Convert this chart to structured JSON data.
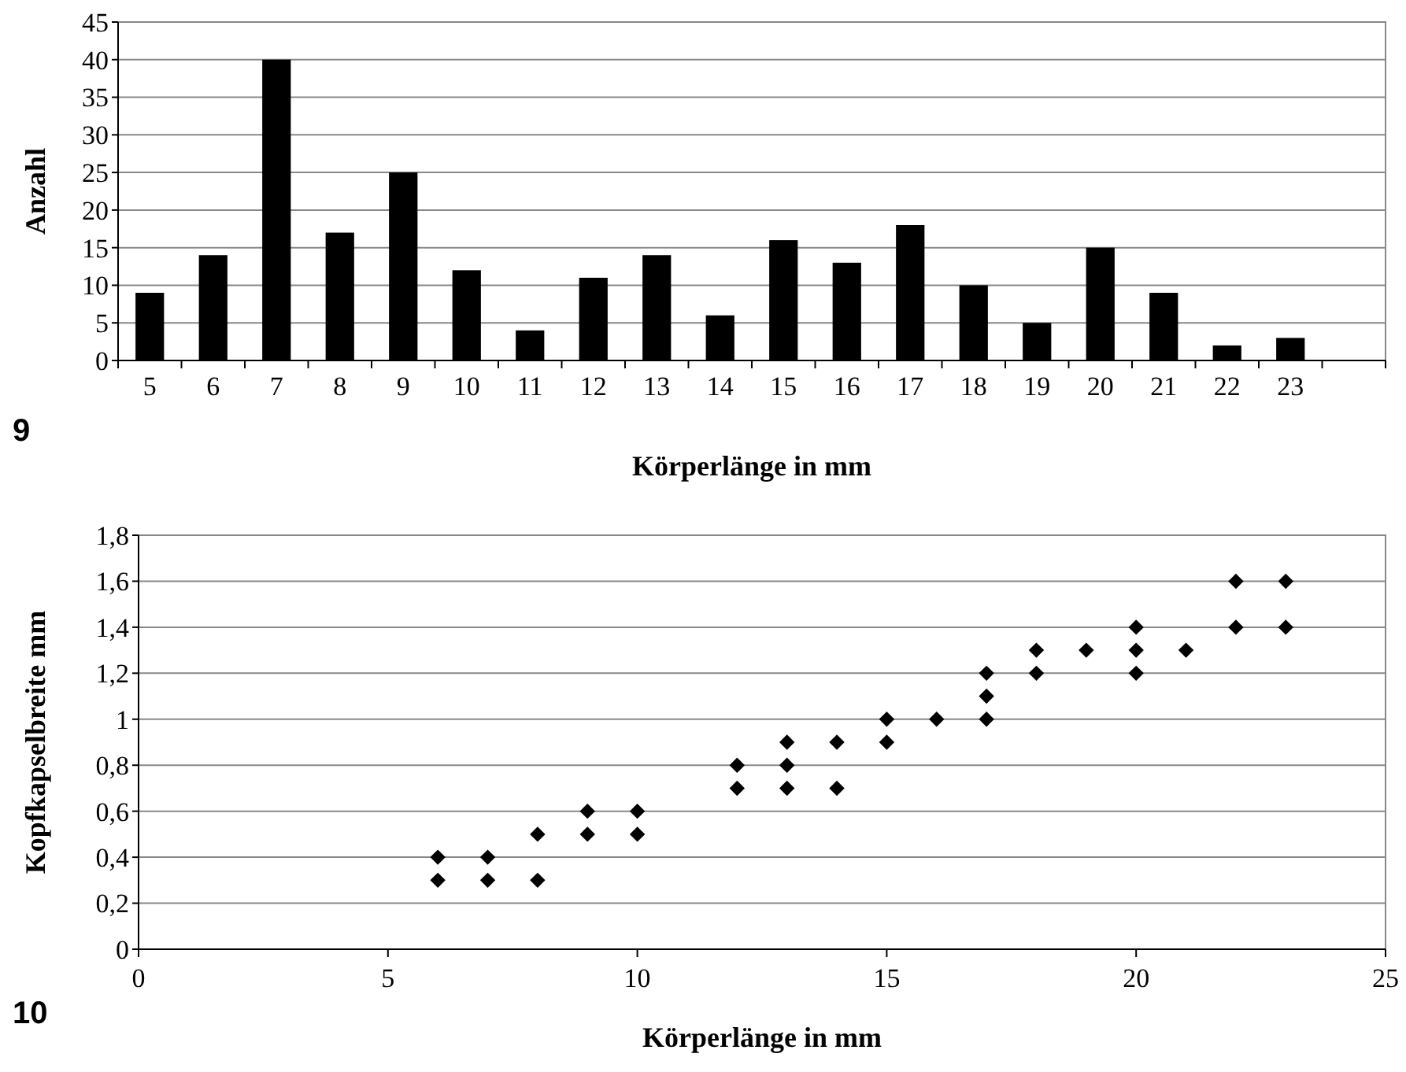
{
  "chart_data": [
    {
      "type": "bar",
      "xlabel": "Körperlänge in mm",
      "ylabel": "Anzahl",
      "annotations": [
        "9"
      ],
      "categories": [
        "5",
        "6",
        "7",
        "8",
        "9",
        "10",
        "11",
        "12",
        "13",
        "14",
        "15",
        "16",
        "17",
        "18",
        "19",
        "20",
        "21",
        "22",
        "23",
        null
      ],
      "values": [
        9,
        14,
        40,
        17,
        25,
        12,
        4,
        11,
        14,
        6,
        16,
        13,
        18,
        10,
        5,
        15,
        9,
        2,
        3,
        null
      ],
      "color": "#000000",
      "ylim": [
        0,
        45
      ],
      "yticks": [
        0,
        5,
        10,
        15,
        20,
        25,
        30,
        35,
        40,
        45
      ],
      "grid": "y"
    },
    {
      "type": "scatter",
      "xlabel": "Körperlänge in mm",
      "ylabel": "Kopfkapselbreite mm",
      "annotations": [
        "10"
      ],
      "x": [
        6,
        6,
        7,
        7,
        8,
        8,
        9,
        9,
        10,
        10,
        12,
        12,
        13,
        13,
        13,
        14,
        14,
        15,
        15,
        16,
        17,
        17,
        17,
        18,
        18,
        19,
        20,
        20,
        20,
        21,
        22,
        22,
        23,
        23
      ],
      "values": [
        0.4,
        0.3,
        0.4,
        0.3,
        0.5,
        0.3,
        0.6,
        0.5,
        0.6,
        0.5,
        0.8,
        0.7,
        0.9,
        0.8,
        0.7,
        0.9,
        0.7,
        1.0,
        0.9,
        1.0,
        1.2,
        1.1,
        1.0,
        1.3,
        1.2,
        1.3,
        1.4,
        1.3,
        1.2,
        1.3,
        1.6,
        1.4,
        1.6,
        1.4
      ],
      "color": "#000000",
      "marker": "diamond",
      "xlim": [
        0,
        25
      ],
      "xticks": [
        0,
        5,
        10,
        15,
        20,
        25
      ],
      "ylim": [
        0,
        1.8
      ],
      "yticks": [
        0,
        {
          "value": 0.2,
          "label": "0,2"
        },
        {
          "value": 0.4,
          "label": "0,4"
        },
        {
          "value": 0.6,
          "label": "0,6"
        },
        {
          "value": 0.8,
          "label": "0,8"
        },
        1,
        {
          "value": 1.2,
          "label": "1,2"
        },
        {
          "value": 1.4,
          "label": "1,4"
        },
        {
          "value": 1.6,
          "label": "1,6"
        },
        {
          "value": 1.8,
          "label": "1,8"
        }
      ],
      "grid": "y"
    }
  ]
}
